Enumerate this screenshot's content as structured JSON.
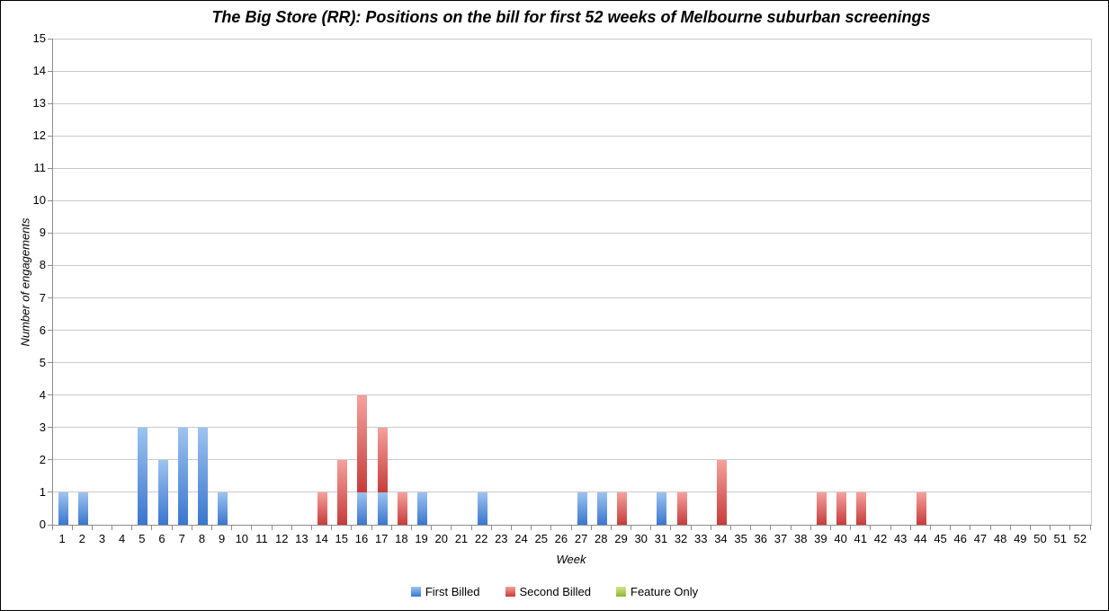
{
  "chart_data": {
    "type": "bar",
    "stacked": true,
    "title": "The Big Store (RR): Positions on the bill for first 52 weeks of Melbourne suburban screenings",
    "xlabel": "Week",
    "ylabel": "Number of engagements",
    "ylim": [
      0,
      15
    ],
    "y_tick_step": 1,
    "grid": true,
    "legend_position": "bottom",
    "categories": [
      "1",
      "2",
      "3",
      "4",
      "5",
      "6",
      "7",
      "8",
      "9",
      "10",
      "11",
      "12",
      "13",
      "14",
      "15",
      "16",
      "17",
      "18",
      "19",
      "20",
      "21",
      "22",
      "23",
      "24",
      "25",
      "26",
      "27",
      "28",
      "29",
      "30",
      "31",
      "32",
      "33",
      "34",
      "35",
      "36",
      "37",
      "38",
      "39",
      "40",
      "41",
      "42",
      "43",
      "44",
      "45",
      "46",
      "47",
      "48",
      "49",
      "50",
      "51",
      "52"
    ],
    "series": [
      {
        "name": "First Billed",
        "color": "#5588CB",
        "gradient_top": "#9DC3F0",
        "gradient_bottom": "#3A76CE",
        "values": [
          1,
          1,
          0,
          0,
          3,
          2,
          3,
          3,
          1,
          0,
          0,
          0,
          0,
          0,
          0,
          1,
          1,
          0,
          1,
          0,
          0,
          1,
          0,
          0,
          0,
          0,
          1,
          1,
          0,
          0,
          1,
          0,
          0,
          0,
          0,
          0,
          0,
          0,
          0,
          0,
          0,
          0,
          0,
          0,
          0,
          0,
          0,
          0,
          0,
          0,
          0,
          0
        ]
      },
      {
        "name": "Second Billed",
        "color": "#CC4744",
        "gradient_top": "#F5A19D",
        "gradient_bottom": "#C63C3A",
        "values": [
          0,
          0,
          0,
          0,
          0,
          0,
          0,
          0,
          0,
          0,
          0,
          0,
          0,
          1,
          2,
          3,
          2,
          1,
          0,
          0,
          0,
          0,
          0,
          0,
          0,
          0,
          0,
          0,
          1,
          0,
          0,
          1,
          0,
          2,
          0,
          0,
          0,
          0,
          1,
          1,
          1,
          0,
          0,
          1,
          0,
          0,
          0,
          0,
          0,
          0,
          0,
          0
        ]
      },
      {
        "name": "Feature Only",
        "color": "#A9D045",
        "gradient_top": "#D3E68A",
        "gradient_bottom": "#8FB832",
        "values": [
          0,
          0,
          0,
          0,
          0,
          0,
          0,
          0,
          0,
          0,
          0,
          0,
          0,
          0,
          0,
          0,
          0,
          0,
          0,
          0,
          0,
          0,
          0,
          0,
          0,
          0,
          0,
          0,
          0,
          0,
          0,
          0,
          0,
          0,
          0,
          0,
          0,
          0,
          0,
          0,
          0,
          0,
          0,
          0,
          0,
          0,
          0,
          0,
          0,
          0,
          0,
          0
        ]
      }
    ],
    "colors": {
      "gridline": "#C9C9C9",
      "axis": "#8C8C8C",
      "text": "#000000",
      "background": "#FFFFFF"
    }
  }
}
